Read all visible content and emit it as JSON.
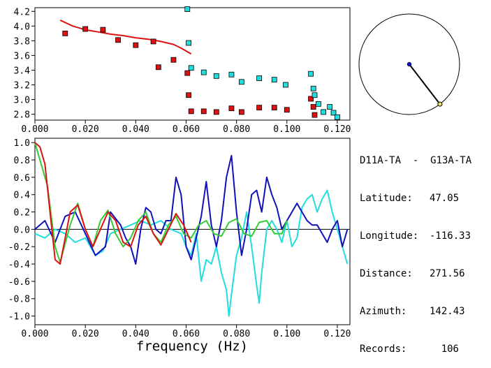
{
  "station": {
    "pair": "D11A-TA  -  G13A-TA",
    "fields": [
      {
        "label": "Latitude:",
        "value": "47.05"
      },
      {
        "label": "Longitude:",
        "value": "-116.33"
      },
      {
        "label": "Distance:",
        "value": "271.56"
      },
      {
        "label": "Azimuth:",
        "value": "142.43"
      },
      {
        "label": "Records:",
        "value": "106"
      }
    ]
  },
  "compass": {
    "azimuth_deg": 142.43
  },
  "colors": {
    "red": "#dd1111",
    "cyan": "#22dddd",
    "blue": "#1111bb",
    "green": "#33cc33",
    "black": "#000000"
  },
  "chart_data": [
    {
      "type": "scatter",
      "xlabel": "",
      "ylabel": "",
      "xlim": [
        0.0,
        0.125
      ],
      "ylim": [
        2.72,
        4.25
      ],
      "xticks": [
        "0.000",
        "0.020",
        "0.040",
        "0.060",
        "0.080",
        "0.100",
        "0.120"
      ],
      "yticks": [
        "2.8",
        "3.0",
        "3.2",
        "3.4",
        "3.6",
        "3.8",
        "4.0",
        "4.2"
      ],
      "series": [
        {
          "color": "red",
          "kind": "line",
          "x": [
            0.01,
            0.015,
            0.02,
            0.025,
            0.03,
            0.035,
            0.04,
            0.045,
            0.05,
            0.055,
            0.058,
            0.062
          ],
          "y": [
            4.08,
            4.0,
            3.95,
            3.92,
            3.89,
            3.87,
            3.84,
            3.82,
            3.79,
            3.75,
            3.7,
            3.62
          ]
        },
        {
          "color": "red",
          "kind": "points",
          "x": [
            0.012,
            0.02,
            0.027,
            0.033,
            0.04,
            0.047,
            0.049,
            0.055,
            0.0605,
            0.061,
            0.062,
            0.067,
            0.072,
            0.078,
            0.082,
            0.089,
            0.095,
            0.1,
            0.1095,
            0.1105,
            0.111
          ],
          "y": [
            3.9,
            3.96,
            3.95,
            3.81,
            3.74,
            3.79,
            3.44,
            3.54,
            3.36,
            3.06,
            2.84,
            2.84,
            2.83,
            2.88,
            2.83,
            2.89,
            2.89,
            2.86,
            3.01,
            2.9,
            2.79
          ]
        },
        {
          "color": "cyan",
          "kind": "points",
          "x": [
            0.0605,
            0.061,
            0.062,
            0.067,
            0.072,
            0.078,
            0.082,
            0.089,
            0.095,
            0.0995,
            0.1095,
            0.1105,
            0.111,
            0.1125,
            0.1145,
            0.117,
            0.1185,
            0.12
          ],
          "y": [
            4.23,
            3.77,
            3.43,
            3.37,
            3.32,
            3.34,
            3.24,
            3.29,
            3.27,
            3.2,
            3.35,
            3.15,
            3.06,
            2.94,
            2.83,
            2.9,
            2.82,
            2.76
          ]
        }
      ]
    },
    {
      "type": "line",
      "xlabel": "frequency (Hz)",
      "ylabel": "",
      "xlim": [
        0.0,
        0.125
      ],
      "ylim": [
        -1.1,
        1.05
      ],
      "xticks": [
        "0.000",
        "0.020",
        "0.040",
        "0.060",
        "0.080",
        "0.100",
        "0.120"
      ],
      "yticks": [
        "1.0",
        "0.8",
        "0.6",
        "0.4",
        "0.2",
        "0.0",
        "-0.2",
        "-0.4",
        "-0.6",
        "-0.8",
        "-1.0"
      ],
      "series": [
        {
          "color": "cyan",
          "x": [
            0.0,
            0.004,
            0.008,
            0.012,
            0.016,
            0.02,
            0.024,
            0.027,
            0.03,
            0.034,
            0.038,
            0.042,
            0.046,
            0.05,
            0.054,
            0.058,
            0.06,
            0.062,
            0.064,
            0.066,
            0.068,
            0.07,
            0.072,
            0.074,
            0.076,
            0.077,
            0.078,
            0.08,
            0.082,
            0.084,
            0.086,
            0.088,
            0.089,
            0.09,
            0.092,
            0.094,
            0.096,
            0.098,
            0.1,
            0.102,
            0.104,
            0.106,
            0.108,
            0.11,
            0.112,
            0.114,
            0.116,
            0.118,
            0.12,
            0.122,
            0.124
          ],
          "y": [
            -0.05,
            -0.1,
            0.0,
            -0.05,
            -0.15,
            -0.1,
            -0.3,
            -0.25,
            -0.05,
            0.0,
            0.05,
            0.1,
            0.05,
            0.1,
            0.0,
            -0.05,
            -0.2,
            -0.3,
            -0.05,
            -0.6,
            -0.35,
            -0.4,
            -0.2,
            -0.5,
            -0.7,
            -1.0,
            -0.75,
            -0.3,
            -0.1,
            0.2,
            -0.2,
            -0.65,
            -0.85,
            -0.5,
            0.0,
            0.1,
            0.0,
            -0.15,
            0.1,
            -0.2,
            -0.1,
            0.25,
            0.35,
            0.4,
            0.2,
            0.35,
            0.45,
            0.2,
            0.0,
            -0.2,
            -0.4
          ]
        },
        {
          "color": "blue",
          "x": [
            0.0,
            0.004,
            0.008,
            0.012,
            0.016,
            0.02,
            0.024,
            0.028,
            0.03,
            0.034,
            0.036,
            0.038,
            0.04,
            0.042,
            0.044,
            0.046,
            0.048,
            0.05,
            0.052,
            0.054,
            0.056,
            0.058,
            0.06,
            0.062,
            0.064,
            0.066,
            0.068,
            0.07,
            0.072,
            0.074,
            0.076,
            0.078,
            0.08,
            0.082,
            0.084,
            0.086,
            0.088,
            0.09,
            0.092,
            0.094,
            0.096,
            0.098,
            0.1,
            0.102,
            0.104,
            0.106,
            0.108,
            0.11,
            0.112,
            0.114,
            0.116,
            0.118,
            0.12,
            0.122,
            0.124
          ],
          "y": [
            0.0,
            0.1,
            -0.15,
            0.15,
            0.2,
            -0.05,
            -0.3,
            -0.2,
            0.2,
            0.05,
            -0.1,
            -0.2,
            -0.4,
            0.0,
            0.25,
            0.2,
            0.0,
            -0.05,
            0.1,
            0.1,
            0.6,
            0.4,
            -0.2,
            -0.35,
            -0.1,
            0.15,
            0.55,
            0.05,
            -0.2,
            0.1,
            0.6,
            0.85,
            0.2,
            -0.3,
            0.0,
            0.4,
            0.45,
            0.2,
            0.6,
            0.4,
            0.25,
            0.0,
            0.1,
            0.2,
            0.3,
            0.2,
            0.1,
            0.05,
            0.05,
            -0.05,
            -0.15,
            0.0,
            0.1,
            -0.2,
            0.0
          ]
        },
        {
          "color": "green",
          "x": [
            0.0,
            0.005,
            0.008,
            0.01,
            0.014,
            0.017,
            0.02,
            0.023,
            0.026,
            0.029,
            0.032,
            0.035,
            0.038,
            0.041,
            0.044,
            0.047,
            0.05,
            0.053,
            0.056,
            0.059,
            0.062,
            0.065,
            0.068,
            0.071,
            0.074,
            0.077,
            0.08,
            0.083,
            0.086,
            0.089,
            0.092,
            0.095,
            0.098,
            0.1
          ],
          "y": [
            1.0,
            0.5,
            -0.2,
            -0.38,
            0.05,
            0.3,
            0.0,
            -0.2,
            0.1,
            0.22,
            -0.05,
            -0.2,
            -0.1,
            0.1,
            0.2,
            -0.05,
            -0.15,
            0.05,
            0.15,
            -0.05,
            -0.1,
            0.05,
            0.1,
            -0.05,
            -0.08,
            0.08,
            0.12,
            -0.05,
            -0.08,
            0.08,
            0.1,
            -0.05,
            -0.05,
            0.1
          ]
        },
        {
          "color": "red",
          "x": [
            0.0,
            0.002,
            0.004,
            0.006,
            0.008,
            0.01,
            0.012,
            0.014,
            0.017,
            0.02,
            0.023,
            0.026,
            0.029,
            0.032,
            0.035,
            0.038,
            0.041,
            0.044,
            0.047,
            0.05,
            0.053,
            0.056,
            0.059,
            0.062
          ],
          "y": [
            1.0,
            0.95,
            0.75,
            0.2,
            -0.35,
            -0.4,
            -0.1,
            0.2,
            0.28,
            0.0,
            -0.2,
            0.0,
            0.2,
            0.1,
            -0.15,
            -0.2,
            0.05,
            0.15,
            -0.05,
            -0.18,
            0.0,
            0.18,
            0.05,
            -0.15
          ]
        }
      ]
    }
  ]
}
